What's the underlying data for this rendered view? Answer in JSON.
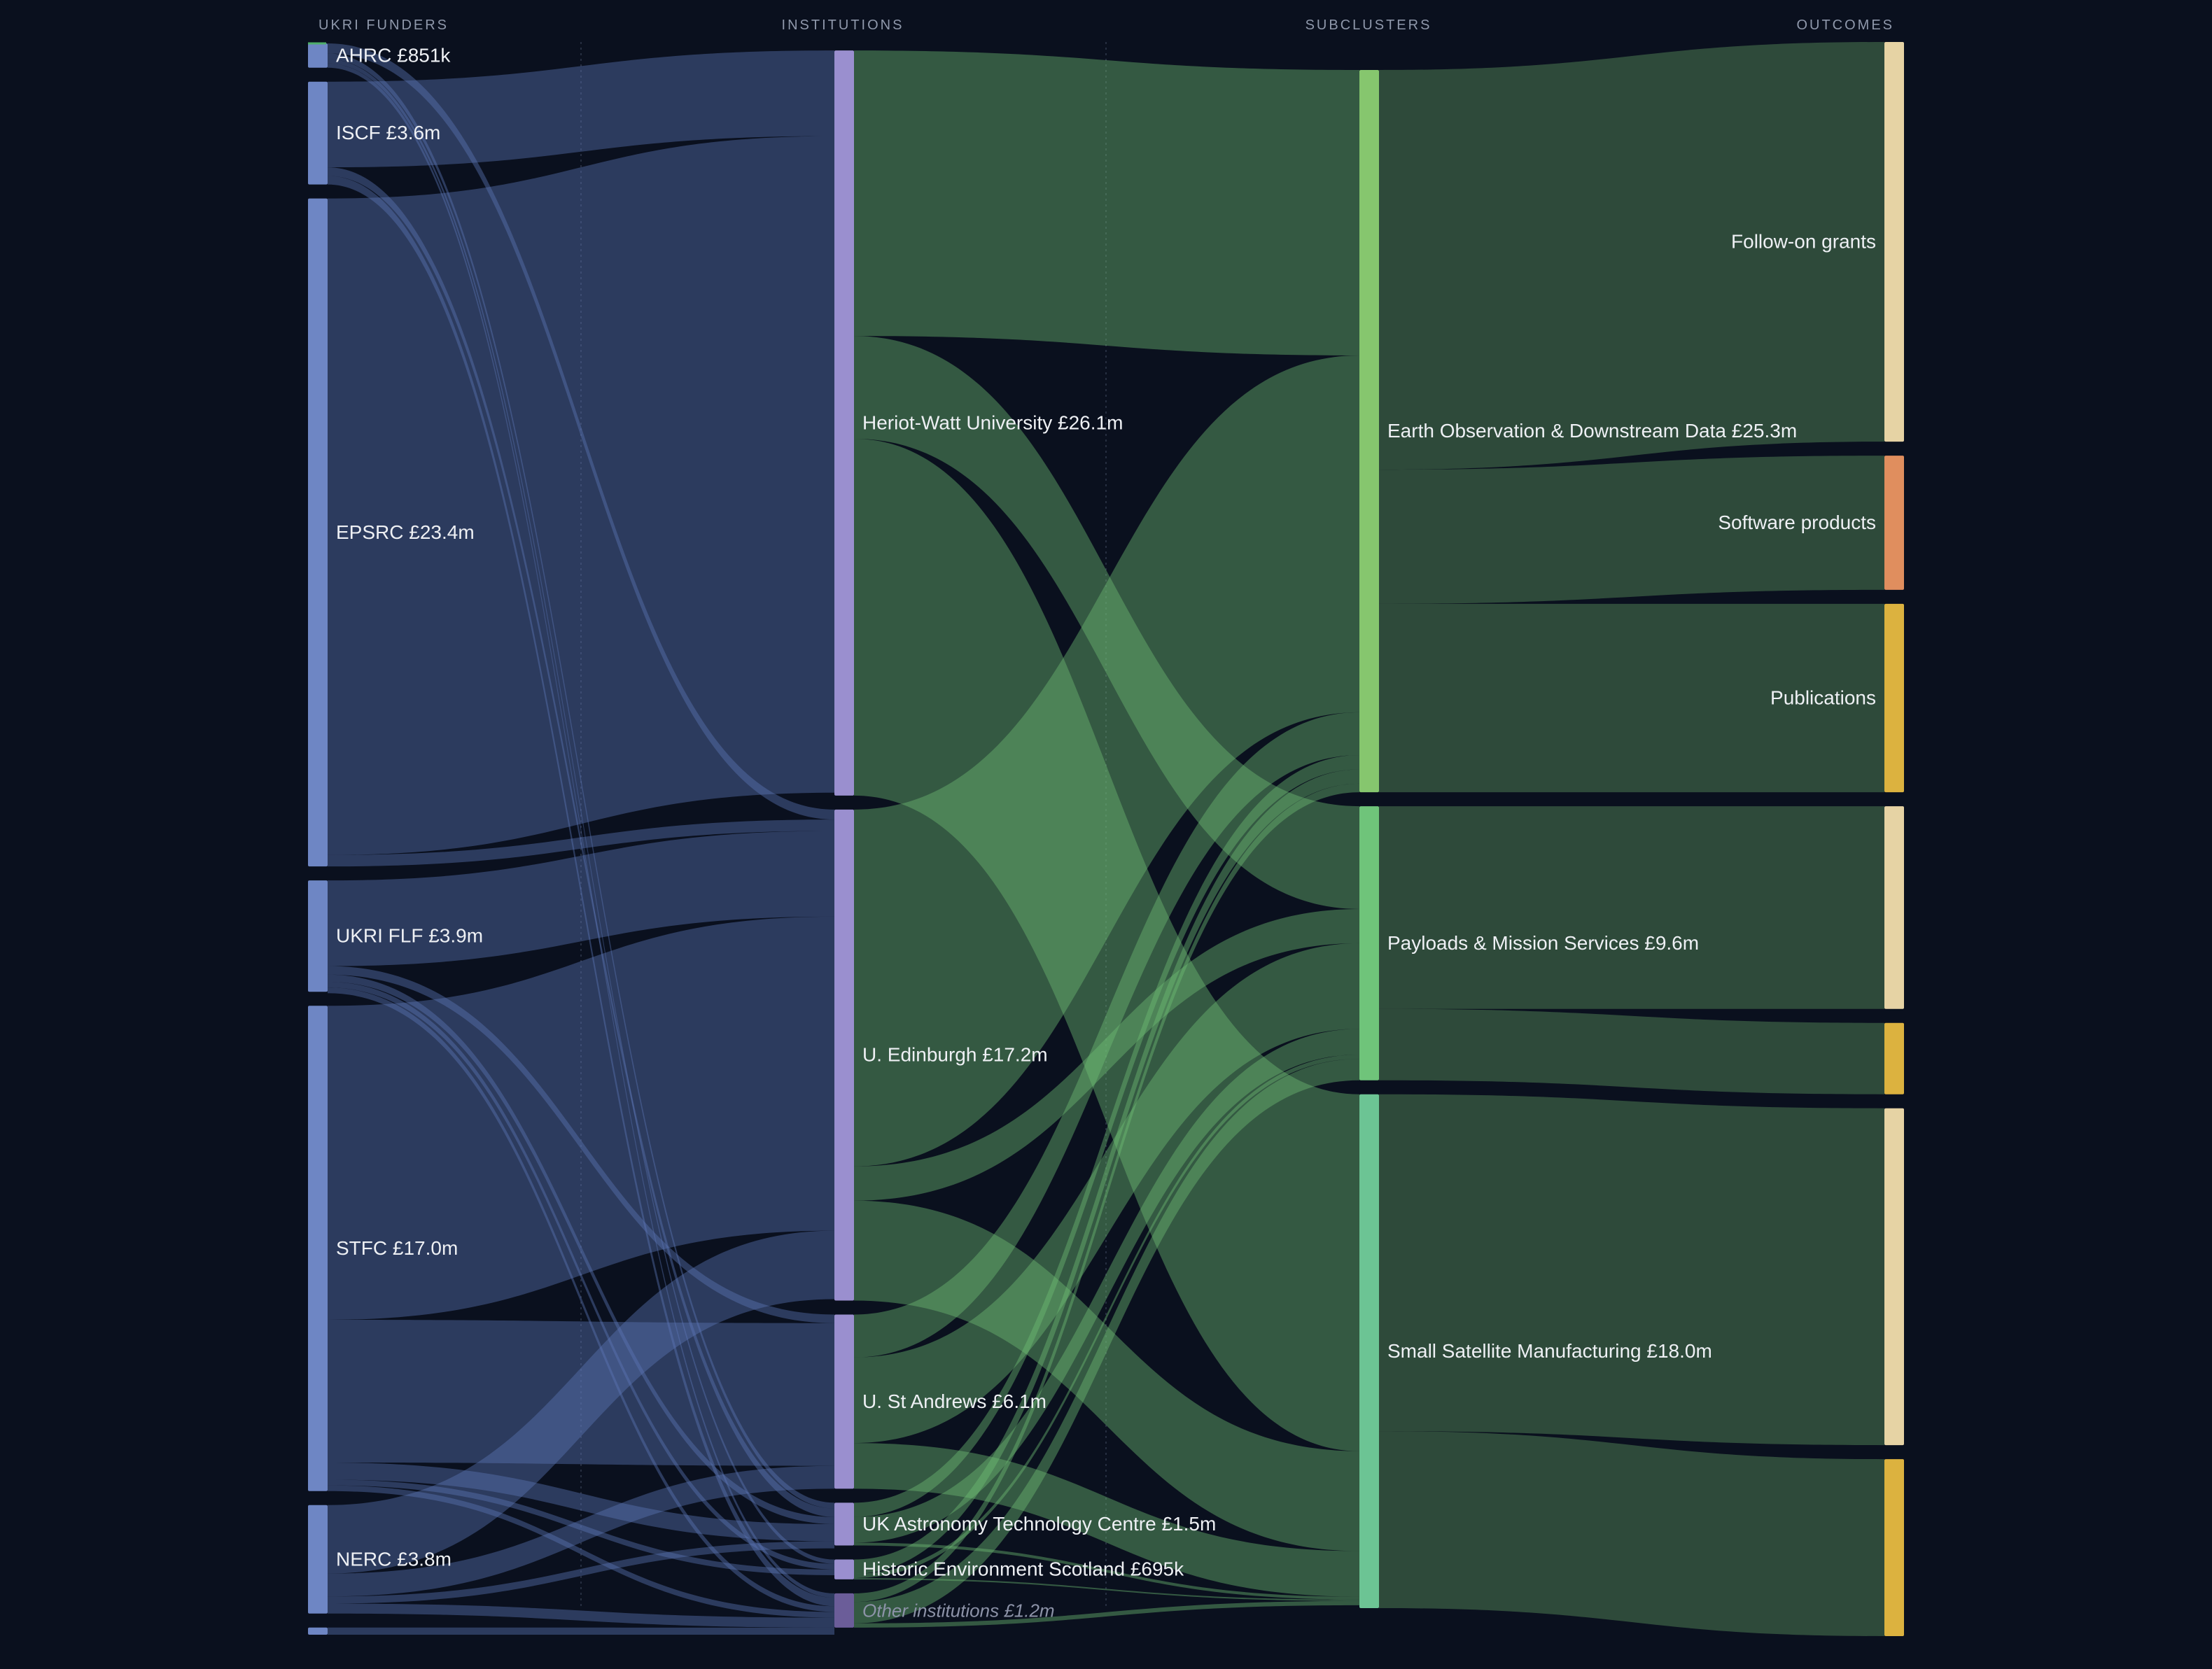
{
  "chart_data": {
    "type": "sankey",
    "columns": [
      "UKRI FUNDERS",
      "INSTITUTIONS",
      "SUBCLUSTERS",
      "OUTCOMES"
    ],
    "nodes": [
      {
        "id": "ahrc",
        "col": 0,
        "label": "AHRC £851k",
        "value": 0.851,
        "color": "#6e86c4"
      },
      {
        "id": "iscf",
        "col": 0,
        "label": "ISCF £3.6m",
        "value": 3.6,
        "color": "#6e86c4"
      },
      {
        "id": "epsrc",
        "col": 0,
        "label": "EPSRC £23.4m",
        "value": 23.4,
        "color": "#6e86c4"
      },
      {
        "id": "flf",
        "col": 0,
        "label": "UKRI FLF £3.9m",
        "value": 3.9,
        "color": "#6e86c4"
      },
      {
        "id": "stfc",
        "col": 0,
        "label": "STFC £17.0m",
        "value": 17.0,
        "color": "#6e86c4"
      },
      {
        "id": "nerc",
        "col": 0,
        "label": "NERC £3.8m",
        "value": 3.8,
        "color": "#6e86c4"
      },
      {
        "id": "minor",
        "col": 0,
        "label": "",
        "value": 0.25,
        "color": "#6e86c4"
      },
      {
        "id": "hw",
        "col": 1,
        "label": "Heriot-Watt University £26.1m",
        "value": 26.1,
        "color": "#9a8fcf"
      },
      {
        "id": "ed",
        "col": 1,
        "label": "U. Edinburgh £17.2m",
        "value": 17.2,
        "color": "#9a8fcf"
      },
      {
        "id": "sta",
        "col": 1,
        "label": "U. St Andrews £6.1m",
        "value": 6.1,
        "color": "#9a8fcf"
      },
      {
        "id": "atc",
        "col": 1,
        "label": "UK Astronomy Technology Centre £1.5m",
        "value": 1.5,
        "color": "#9a8fcf"
      },
      {
        "id": "hes",
        "col": 1,
        "label": "Historic Environment Scotland £695k",
        "value": 0.695,
        "color": "#9a8fcf"
      },
      {
        "id": "oth",
        "col": 1,
        "label": "Other institutions £1.2m",
        "value": 1.2,
        "color": "#6b5d99",
        "italic": true
      },
      {
        "id": "eo",
        "col": 2,
        "label": "Earth Observation & Downstream Data £25.3m",
        "value": 25.3,
        "color": "#86c66e"
      },
      {
        "id": "pay",
        "col": 2,
        "label": "Payloads & Mission Services £9.6m",
        "value": 9.6,
        "color": "#6fc47a"
      },
      {
        "id": "ssm",
        "col": 2,
        "label": "Small Satellite Manufacturing £18.0m",
        "value": 18.0,
        "color": "#6cc494"
      },
      {
        "id": "o_fog1",
        "col": 3,
        "label": "Follow-on grants",
        "value": 14.0,
        "color": "#e6d3a4"
      },
      {
        "id": "o_sw",
        "col": 3,
        "label": "Software products",
        "value": 4.7,
        "color": "#e08e5e"
      },
      {
        "id": "o_pub1",
        "col": 3,
        "label": "Publications",
        "value": 6.6,
        "color": "#dcb23f"
      },
      {
        "id": "o_fog2",
        "col": 3,
        "label": "",
        "value": 7.1,
        "color": "#e6d3a4"
      },
      {
        "id": "o_pub2",
        "col": 3,
        "label": "",
        "value": 2.5,
        "color": "#dcb23f"
      },
      {
        "id": "o_fog3",
        "col": 3,
        "label": "",
        "value": 11.8,
        "color": "#e6d3a4"
      },
      {
        "id": "o_pub3",
        "col": 3,
        "label": "",
        "value": 6.2,
        "color": "#dcb23f"
      }
    ],
    "links": [
      {
        "source": "ahrc",
        "target": "ed",
        "value": 0.35
      },
      {
        "source": "ahrc",
        "target": "atc",
        "value": 0.2
      },
      {
        "source": "ahrc",
        "target": "hes",
        "value": 0.15
      },
      {
        "source": "ahrc",
        "target": "oth",
        "value": 0.15
      },
      {
        "source": "iscf",
        "target": "hw",
        "value": 3.0
      },
      {
        "source": "iscf",
        "target": "atc",
        "value": 0.3
      },
      {
        "source": "iscf",
        "target": "oth",
        "value": 0.3
      },
      {
        "source": "epsrc",
        "target": "hw",
        "value": 23.0
      },
      {
        "source": "epsrc",
        "target": "ed",
        "value": 0.4
      },
      {
        "source": "flf",
        "target": "ed",
        "value": 3.0
      },
      {
        "source": "flf",
        "target": "sta",
        "value": 0.3
      },
      {
        "source": "flf",
        "target": "atc",
        "value": 0.25
      },
      {
        "source": "flf",
        "target": "hes",
        "value": 0.2
      },
      {
        "source": "flf",
        "target": "oth",
        "value": 0.2
      },
      {
        "source": "stfc",
        "target": "ed",
        "value": 11.0
      },
      {
        "source": "stfc",
        "target": "sta",
        "value": 5.0
      },
      {
        "source": "stfc",
        "target": "atc",
        "value": 0.6
      },
      {
        "source": "stfc",
        "target": "hes",
        "value": 0.2
      },
      {
        "source": "stfc",
        "target": "oth",
        "value": 0.2
      },
      {
        "source": "nerc",
        "target": "ed",
        "value": 2.4
      },
      {
        "source": "nerc",
        "target": "sta",
        "value": 0.8
      },
      {
        "source": "nerc",
        "target": "atc",
        "value": 0.25
      },
      {
        "source": "nerc",
        "target": "oth",
        "value": 0.35
      },
      {
        "source": "minor",
        "target": "oth",
        "value": 0.25
      },
      {
        "source": "hw",
        "target": "eo",
        "value": 10.0
      },
      {
        "source": "hw",
        "target": "pay",
        "value": 3.6
      },
      {
        "source": "hw",
        "target": "ssm",
        "value": 12.5
      },
      {
        "source": "ed",
        "target": "eo",
        "value": 12.5
      },
      {
        "source": "ed",
        "target": "pay",
        "value": 1.2
      },
      {
        "source": "ed",
        "target": "ssm",
        "value": 3.5
      },
      {
        "source": "sta",
        "target": "eo",
        "value": 1.5
      },
      {
        "source": "sta",
        "target": "pay",
        "value": 3.0
      },
      {
        "source": "sta",
        "target": "ssm",
        "value": 1.6
      },
      {
        "source": "atc",
        "target": "eo",
        "value": 0.5
      },
      {
        "source": "atc",
        "target": "pay",
        "value": 0.9
      },
      {
        "source": "atc",
        "target": "ssm",
        "value": 0.1
      },
      {
        "source": "hes",
        "target": "eo",
        "value": 0.5
      },
      {
        "source": "hes",
        "target": "pay",
        "value": 0.15
      },
      {
        "source": "hes",
        "target": "ssm",
        "value": 0.05
      },
      {
        "source": "oth",
        "target": "eo",
        "value": 0.3
      },
      {
        "source": "oth",
        "target": "pay",
        "value": 0.75
      },
      {
        "source": "oth",
        "target": "ssm",
        "value": 0.15
      },
      {
        "source": "eo",
        "target": "o_fog1",
        "value": 14.0
      },
      {
        "source": "eo",
        "target": "o_sw",
        "value": 4.7
      },
      {
        "source": "eo",
        "target": "o_pub1",
        "value": 6.6
      },
      {
        "source": "pay",
        "target": "o_fog2",
        "value": 7.1
      },
      {
        "source": "pay",
        "target": "o_pub2",
        "value": 2.5
      },
      {
        "source": "ssm",
        "target": "o_fog3",
        "value": 11.8
      },
      {
        "source": "ssm",
        "target": "o_pub3",
        "value": 6.2
      }
    ]
  }
}
